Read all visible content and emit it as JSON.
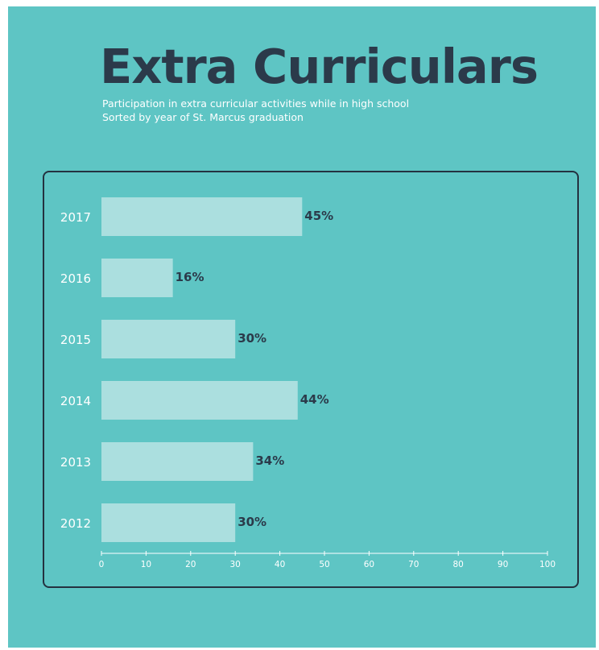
{
  "colors": {
    "background": "#5ec5c4",
    "bar": "#abdfdf",
    "title": "#2b3a4a",
    "text": "#ffffff",
    "panel_border": "#243240"
  },
  "chart_data": {
    "type": "bar",
    "orientation": "horizontal",
    "title": "Extra Curriculars",
    "subtitle": [
      "Participation in extra curricular activities while in high school",
      "Sorted by year of St. Marcus graduation"
    ],
    "xlabel": "",
    "ylabel": "",
    "categories": [
      "2017",
      "2016",
      "2015",
      "2014",
      "2013",
      "2012"
    ],
    "values": [
      45,
      16,
      30,
      44,
      34,
      30
    ],
    "value_labels": [
      "45%",
      "16%",
      "30%",
      "44%",
      "34%",
      "30%"
    ],
    "xlim": [
      0,
      100
    ],
    "xticks": [
      0,
      10,
      20,
      30,
      40,
      50,
      60,
      70,
      80,
      90,
      100
    ],
    "grid": false,
    "legend": "none"
  }
}
